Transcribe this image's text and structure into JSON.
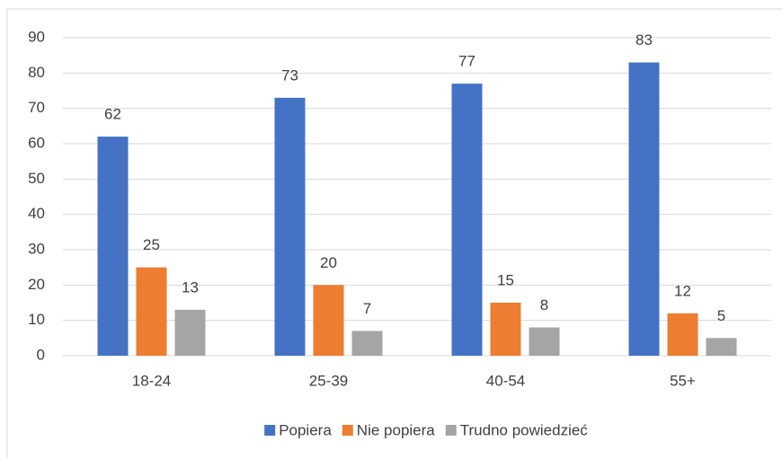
{
  "chart_data": {
    "type": "bar",
    "categories": [
      "18-24",
      "25-39",
      "40-54",
      "55+"
    ],
    "series": [
      {
        "name": "Popiera",
        "color": "#4472c4",
        "values": [
          62,
          73,
          77,
          83
        ]
      },
      {
        "name": "Nie popiera",
        "color": "#ed7d31",
        "values": [
          25,
          20,
          15,
          12
        ]
      },
      {
        "name": "Trudno powiedzieć",
        "color": "#a5a5a5",
        "values": [
          13,
          7,
          8,
          5
        ]
      }
    ],
    "ylim": [
      0,
      90
    ],
    "yticks": [
      0,
      10,
      20,
      30,
      40,
      50,
      60,
      70,
      80,
      90
    ],
    "grid": true,
    "legend": "bottom",
    "data_labels": true
  }
}
